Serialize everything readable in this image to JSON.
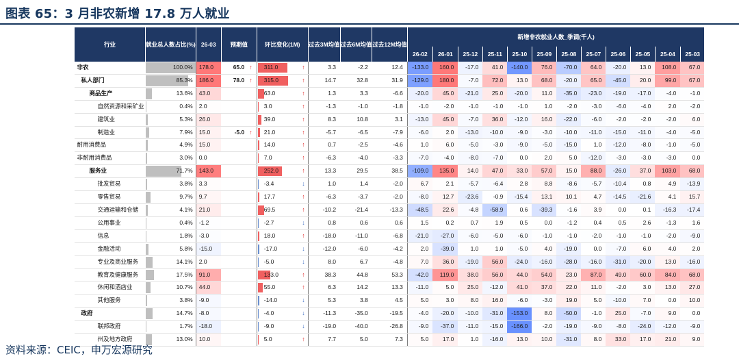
{
  "title": "图表 65：3 月非农新增 17.8 万人就业",
  "source": "资料来源：CEIC，申万宏源研究",
  "headers": {
    "industry": "行业",
    "share": "就业总人数占比(%)",
    "current": "26-03",
    "expected": "预期值",
    "mom": "环比变化(1M)",
    "avg3m": "过去3M均值",
    "avg6m": "过去6M均值",
    "avg12m": "过去12M均值",
    "group": "新增非农就业人数_季调(千人)",
    "months": [
      "26-02",
      "26-01",
      "25-12",
      "25-11",
      "25-10",
      "25-09",
      "25-08",
      "25-07",
      "25-06",
      "25-05",
      "25-04",
      "25-03"
    ]
  },
  "rows": [
    {
      "label": "非农",
      "depth": 0,
      "bold": true,
      "share": "100.0%",
      "shareNum": 100.0,
      "cur": "178.0",
      "exp": "65.0",
      "expArrow": "up",
      "mom": "311.0",
      "momNum": 311.0,
      "momArrow": "up",
      "a3": "3.3",
      "a6": "-2.2",
      "a12": "12.4",
      "m": [
        "-133.0",
        "160.0",
        "-17.0",
        "41.0",
        "-140.0",
        "76.0",
        "-70.0",
        "64.0",
        "-20.0",
        "13.0",
        "108.0",
        "67.0"
      ]
    },
    {
      "label": "私人部门",
      "depth": 1,
      "bold": true,
      "share": "85.3%",
      "shareNum": 85.3,
      "cur": "186.0",
      "exp": "78.0",
      "expArrow": "up",
      "mom": "315.0",
      "momNum": 315.0,
      "momArrow": "up",
      "a3": "14.7",
      "a6": "32.8",
      "a12": "31.9",
      "m": [
        "-129.0",
        "180.0",
        "-7.0",
        "72.0",
        "13.0",
        "68.0",
        "-20.0",
        "65.0",
        "-45.0",
        "20.0",
        "99.0",
        "67.0"
      ]
    },
    {
      "label": "商品生产",
      "depth": 2,
      "bold": true,
      "share": "13.6%",
      "shareNum": 13.6,
      "cur": "43.0",
      "exp": "",
      "expArrow": "",
      "mom": "63.0",
      "momNum": 63.0,
      "momArrow": "up",
      "a3": "1.3",
      "a6": "3.3",
      "a12": "-6.6",
      "m": [
        "-20.0",
        "45.0",
        "-21.0",
        "25.0",
        "-20.0",
        "11.0",
        "-35.0",
        "-23.0",
        "-19.0",
        "-17.0",
        "-4.0",
        "-1.0"
      ]
    },
    {
      "label": "自然资源和采矿业",
      "depth": 3,
      "bold": false,
      "share": "0.4%",
      "shareNum": 0.4,
      "cur": "2.0",
      "exp": "",
      "expArrow": "",
      "mom": "3.0",
      "momNum": 3.0,
      "momArrow": "up",
      "a3": "-1.3",
      "a6": "-1.0",
      "a12": "-1.8",
      "m": [
        "-1.0",
        "-2.0",
        "-1.0",
        "-1.0",
        "-1.0",
        "1.0",
        "-2.0",
        "-3.0",
        "-6.0",
        "-4.0",
        "2.0",
        "-2.0"
      ]
    },
    {
      "label": "建筑业",
      "depth": 3,
      "bold": false,
      "share": "5.3%",
      "shareNum": 5.3,
      "cur": "26.0",
      "exp": "",
      "expArrow": "",
      "mom": "39.0",
      "momNum": 39.0,
      "momArrow": "up",
      "a3": "8.3",
      "a6": "10.8",
      "a12": "3.1",
      "m": [
        "-13.0",
        "45.0",
        "-7.0",
        "36.0",
        "-12.0",
        "16.0",
        "-22.0",
        "-6.0",
        "-2.0",
        "-2.0",
        "-2.0",
        "6.0"
      ]
    },
    {
      "label": "制造业",
      "depth": 3,
      "bold": false,
      "share": "7.9%",
      "shareNum": 7.9,
      "cur": "15.0",
      "exp": "-5.0",
      "expArrow": "up",
      "mom": "21.0",
      "momNum": 21.0,
      "momArrow": "up",
      "a3": "-5.7",
      "a6": "-6.5",
      "a12": "-7.9",
      "m": [
        "-6.0",
        "2.0",
        "-13.0",
        "-10.0",
        "-9.0",
        "-3.0",
        "-10.0",
        "-11.0",
        "-15.0",
        "-11.0",
        "-4.0",
        "-5.0"
      ]
    },
    {
      "label": "耐用消费品",
      "depth": 4,
      "bold": false,
      "share": "4.9%",
      "shareNum": 4.9,
      "cur": "15.0",
      "exp": "",
      "expArrow": "",
      "mom": "14.0",
      "momNum": 14.0,
      "momArrow": "up",
      "a3": "0.7",
      "a6": "-2.5",
      "a12": "-4.6",
      "m": [
        "1.0",
        "6.0",
        "-5.0",
        "-3.0",
        "-9.0",
        "-5.0",
        "-15.0",
        "1.0",
        "-12.0",
        "-8.0",
        "-1.0",
        "-5.0"
      ]
    },
    {
      "label": "非耐用消费品",
      "depth": 4,
      "bold": false,
      "share": "3.0%",
      "shareNum": 3.0,
      "cur": "0.0",
      "exp": "",
      "expArrow": "",
      "mom": "7.0",
      "momNum": 7.0,
      "momArrow": "up",
      "a3": "-6.3",
      "a6": "-4.0",
      "a12": "-3.3",
      "m": [
        "-7.0",
        "-4.0",
        "-8.0",
        "-7.0",
        "0.0",
        "2.0",
        "5.0",
        "-12.0",
        "-3.0",
        "-3.0",
        "-3.0",
        "0.0"
      ]
    },
    {
      "label": "服务业",
      "depth": 2,
      "bold": true,
      "share": "71.7%",
      "shareNum": 71.7,
      "cur": "143.0",
      "exp": "",
      "expArrow": "",
      "mom": "252.0",
      "momNum": 252.0,
      "momArrow": "up",
      "a3": "13.3",
      "a6": "29.5",
      "a12": "38.5",
      "m": [
        "-109.0",
        "135.0",
        "14.0",
        "47.0",
        "33.0",
        "57.0",
        "15.0",
        "88.0",
        "-26.0",
        "37.0",
        "103.0",
        "68.0"
      ]
    },
    {
      "label": "批发贸易",
      "depth": 3,
      "bold": false,
      "share": "3.8%",
      "shareNum": 3.8,
      "cur": "3.3",
      "exp": "",
      "expArrow": "",
      "mom": "-3.4",
      "momNum": -3.4,
      "momArrow": "down",
      "a3": "1.0",
      "a6": "1.4",
      "a12": "-2.0",
      "m": [
        "6.7",
        "2.1",
        "-5.7",
        "-6.4",
        "2.8",
        "8.8",
        "-8.6",
        "-5.7",
        "-10.4",
        "0.8",
        "4.9",
        "-13.9"
      ]
    },
    {
      "label": "零售贸易",
      "depth": 3,
      "bold": false,
      "share": "9.7%",
      "shareNum": 9.7,
      "cur": "9.7",
      "exp": "",
      "expArrow": "",
      "mom": "17.7",
      "momNum": 17.7,
      "momArrow": "up",
      "a3": "-6.3",
      "a6": "-3.7",
      "a12": "-2.0",
      "m": [
        "-8.0",
        "12.7",
        "-23.6",
        "-0.9",
        "-15.4",
        "13.1",
        "10.1",
        "4.7",
        "-14.5",
        "-21.6",
        "4.1",
        "15.7"
      ]
    },
    {
      "label": "交通运输和仓储",
      "depth": 3,
      "bold": false,
      "share": "4.1%",
      "shareNum": 4.1,
      "cur": "21.0",
      "exp": "",
      "expArrow": "",
      "mom": "69.5",
      "momNum": 69.5,
      "momArrow": "up",
      "a3": "-10.2",
      "a6": "-21.4",
      "a12": "-13.3",
      "m": [
        "-48.5",
        "22.6",
        "-4.8",
        "-58.9",
        "0.6",
        "-39.3",
        "-1.6",
        "3.9",
        "0.0",
        "0.1",
        "-16.3",
        "-17.4"
      ]
    },
    {
      "label": "公用事业",
      "depth": 3,
      "bold": false,
      "share": "0.4%",
      "shareNum": 0.4,
      "cur": "-1.2",
      "exp": "",
      "expArrow": "",
      "mom": "-2.7",
      "momNum": -2.7,
      "momArrow": "down",
      "a3": "0.8",
      "a6": "0.6",
      "a12": "0.6",
      "m": [
        "1.5",
        "0.2",
        "0.7",
        "1.9",
        "0.5",
        "0.0",
        "-1.2",
        "0.4",
        "0.5",
        "2.6",
        "-1.3",
        "1.6"
      ]
    },
    {
      "label": "信息",
      "depth": 3,
      "bold": false,
      "share": "1.8%",
      "shareNum": 1.8,
      "cur": "-3.0",
      "exp": "",
      "expArrow": "",
      "mom": "18.0",
      "momNum": 18.0,
      "momArrow": "up",
      "a3": "-18.0",
      "a6": "-11.0",
      "a12": "-6.8",
      "m": [
        "-21.0",
        "-27.0",
        "-6.0",
        "-5.0",
        "-6.0",
        "-1.0",
        "-1.0",
        "-2.0",
        "-1.0",
        "-1.0",
        "-2.0",
        "-9.0"
      ]
    },
    {
      "label": "金融活动",
      "depth": 3,
      "bold": false,
      "share": "5.8%",
      "shareNum": 5.8,
      "cur": "-15.0",
      "exp": "",
      "expArrow": "",
      "mom": "-17.0",
      "momNum": -17.0,
      "momArrow": "down",
      "a3": "-12.0",
      "a6": "-6.0",
      "a12": "-4.2",
      "m": [
        "2.0",
        "-39.0",
        "1.0",
        "1.0",
        "-5.0",
        "4.0",
        "-19.0",
        "0.0",
        "-7.0",
        "6.0",
        "4.0",
        "2.0"
      ]
    },
    {
      "label": "专业及商业服务",
      "depth": 3,
      "bold": false,
      "share": "14.1%",
      "shareNum": 14.1,
      "cur": "2.0",
      "exp": "",
      "expArrow": "",
      "mom": "-5.0",
      "momNum": -5.0,
      "momArrow": "down",
      "a3": "8.0",
      "a6": "6.7",
      "a12": "-4.8",
      "m": [
        "7.0",
        "36.0",
        "-19.0",
        "56.0",
        "-24.0",
        "-16.0",
        "-28.0",
        "-16.0",
        "-31.0",
        "-20.0",
        "13.0",
        "-16.0"
      ]
    },
    {
      "label": "教育及健康服务",
      "depth": 3,
      "bold": false,
      "share": "17.5%",
      "shareNum": 17.5,
      "cur": "91.0",
      "exp": "",
      "expArrow": "",
      "mom": "133.0",
      "momNum": 133.0,
      "momArrow": "up",
      "a3": "38.3",
      "a6": "44.8",
      "a12": "53.3",
      "m": [
        "-42.0",
        "119.0",
        "38.0",
        "56.0",
        "44.0",
        "54.0",
        "23.0",
        "87.0",
        "49.0",
        "60.0",
        "84.0",
        "68.0"
      ]
    },
    {
      "label": "休闲和酒店业",
      "depth": 3,
      "bold": false,
      "share": "10.7%",
      "shareNum": 10.7,
      "cur": "44.0",
      "exp": "",
      "expArrow": "",
      "mom": "55.0",
      "momNum": 55.0,
      "momArrow": "up",
      "a3": "6.3",
      "a6": "14.2",
      "a12": "13.3",
      "m": [
        "-11.0",
        "5.0",
        "25.0",
        "-12.0",
        "41.0",
        "37.0",
        "22.0",
        "11.0",
        "-2.0",
        "3.0",
        "13.0",
        "27.0"
      ]
    },
    {
      "label": "其他服务",
      "depth": 3,
      "bold": false,
      "share": "3.8%",
      "shareNum": 3.8,
      "cur": "-9.0",
      "exp": "",
      "expArrow": "",
      "mom": "-14.0",
      "momNum": -14.0,
      "momArrow": "down",
      "a3": "5.3",
      "a6": "3.8",
      "a12": "4.5",
      "m": [
        "5.0",
        "3.0",
        "8.0",
        "16.0",
        "-6.0",
        "-3.0",
        "19.0",
        "5.0",
        "-10.0",
        "7.0",
        "0.0",
        "10.0"
      ]
    },
    {
      "label": "政府",
      "depth": 1,
      "bold": true,
      "share": "14.7%",
      "shareNum": 14.7,
      "cur": "-8.0",
      "exp": "",
      "expArrow": "",
      "mom": "-4.0",
      "momNum": -4.0,
      "momArrow": "down",
      "a3": "-11.3",
      "a6": "-35.0",
      "a12": "-19.5",
      "m": [
        "-4.0",
        "-20.0",
        "-10.0",
        "-31.0",
        "-153.0",
        "8.0",
        "-50.0",
        "-1.0",
        "25.0",
        "-7.0",
        "9.0",
        "0.0"
      ]
    },
    {
      "label": "联邦政府",
      "depth": 3,
      "bold": false,
      "share": "1.7%",
      "shareNum": 1.7,
      "cur": "-18.0",
      "exp": "",
      "expArrow": "",
      "mom": "-9.0",
      "momNum": -9.0,
      "momArrow": "down",
      "a3": "-19.0",
      "a6": "-40.0",
      "a12": "-26.8",
      "m": [
        "-9.0",
        "-37.0",
        "-11.0",
        "-15.0",
        "-166.0",
        "-2.0",
        "-19.0",
        "-9.0",
        "-8.0",
        "-24.0",
        "-12.0",
        "-9.0"
      ]
    },
    {
      "label": "州及地方政府",
      "depth": 3,
      "bold": false,
      "share": "13.0%",
      "shareNum": 13.0,
      "cur": "10.0",
      "exp": "",
      "expArrow": "",
      "mom": "5.0",
      "momNum": 5.0,
      "momArrow": "up",
      "a3": "7.7",
      "a6": "5.0",
      "a12": "7.3",
      "m": [
        "5.0",
        "17.0",
        "1.0",
        "-16.0",
        "13.0",
        "10.0",
        "-31.0",
        "8.0",
        "33.0",
        "17.0",
        "21.0",
        "9.0"
      ]
    }
  ],
  "colors": {
    "header": "#1f3864",
    "title": "#17375e",
    "posStrong": "#f08080",
    "negStrong": "#6a8fcf",
    "shareBar": "#bfbfbf",
    "momPos": "#f06060",
    "momNeg": "#6a8fcf"
  }
}
